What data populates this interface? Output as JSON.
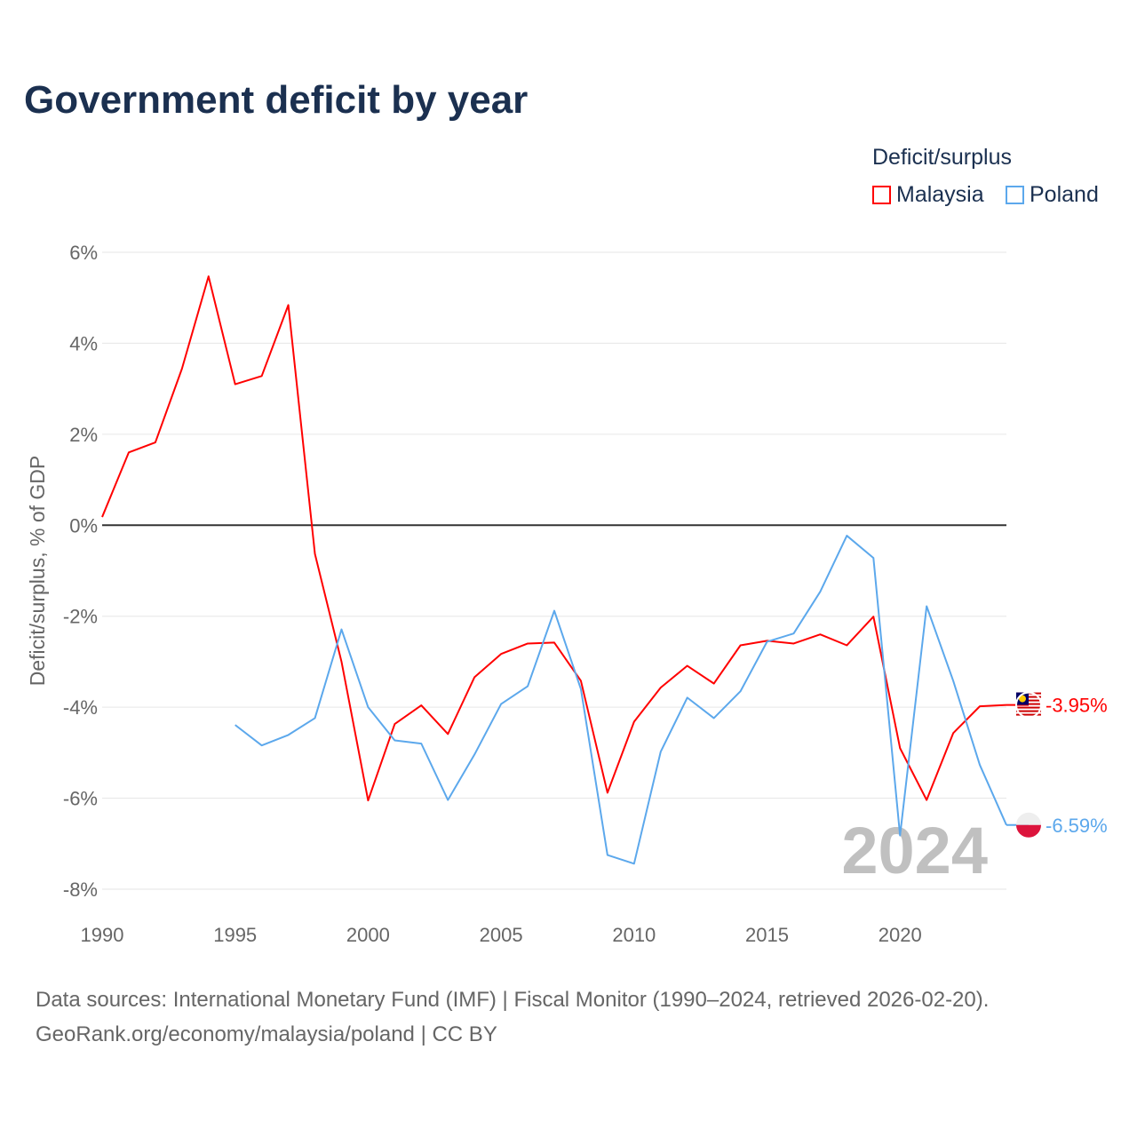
{
  "title": "Government deficit by year",
  "legend": {
    "title": "Deficit/surplus",
    "items": [
      {
        "name": "Malaysia",
        "color": "#ff0000"
      },
      {
        "name": "Poland",
        "color": "#5ca8ec"
      }
    ]
  },
  "source_lines": [
    "Data sources: International Monetary Fund (IMF) | Fiscal Monitor (1990–2024, retrieved 2026-02-20).",
    "GeoRank.org/economy/malaysia/poland | CC BY"
  ],
  "chart_data": {
    "type": "line",
    "title": "Government deficit by year",
    "ylabel": "Deficit/surplus, % of GDP",
    "xlabel": "",
    "xlim": [
      1990,
      2024
    ],
    "ylim": [
      -8,
      6
    ],
    "x_ticks": [
      "1990",
      "1995",
      "2000",
      "2005",
      "2010",
      "2015",
      "2020"
    ],
    "y_ticks": [
      {
        "v": 6,
        "label": "6%"
      },
      {
        "v": 4,
        "label": "4%"
      },
      {
        "v": 2,
        "label": "2%"
      },
      {
        "v": 0,
        "label": "0%"
      },
      {
        "v": -2,
        "label": "-2%"
      },
      {
        "v": -4,
        "label": "-4%"
      },
      {
        "v": -6,
        "label": "-6%"
      },
      {
        "v": -8,
        "label": "-8%"
      }
    ],
    "year_watermark": "2024",
    "series": [
      {
        "name": "Malaysia",
        "color": "#ff0000",
        "end_label": "-3.95%",
        "start": 1990,
        "values": [
          0.18,
          1.6,
          1.82,
          3.44,
          5.47,
          3.1,
          3.28,
          4.84,
          -0.63,
          -3.0,
          -6.05,
          -4.37,
          -3.96,
          -4.59,
          -3.34,
          -2.83,
          -2.6,
          -2.58,
          -3.42,
          -5.88,
          -4.32,
          -3.57,
          -3.09,
          -3.48,
          -2.64,
          -2.54,
          -2.6,
          -2.4,
          -2.64,
          -2.01,
          -4.9,
          -6.04,
          -4.57,
          -3.98,
          -3.95
        ]
      },
      {
        "name": "Poland",
        "color": "#5ca8ec",
        "end_label": "-6.59%",
        "start": 1995,
        "values": [
          -4.39,
          -4.84,
          -4.61,
          -4.24,
          -2.29,
          -4.0,
          -4.73,
          -4.8,
          -6.04,
          -5.04,
          -3.93,
          -3.54,
          -1.88,
          -3.6,
          -7.25,
          -7.44,
          -4.98,
          -3.79,
          -4.24,
          -3.65,
          -2.56,
          -2.38,
          -1.46,
          -0.23,
          -0.72,
          -6.82,
          -1.78,
          -3.42,
          -5.27,
          -6.59
        ]
      }
    ],
    "grid": true,
    "legend_position": "top-right"
  }
}
